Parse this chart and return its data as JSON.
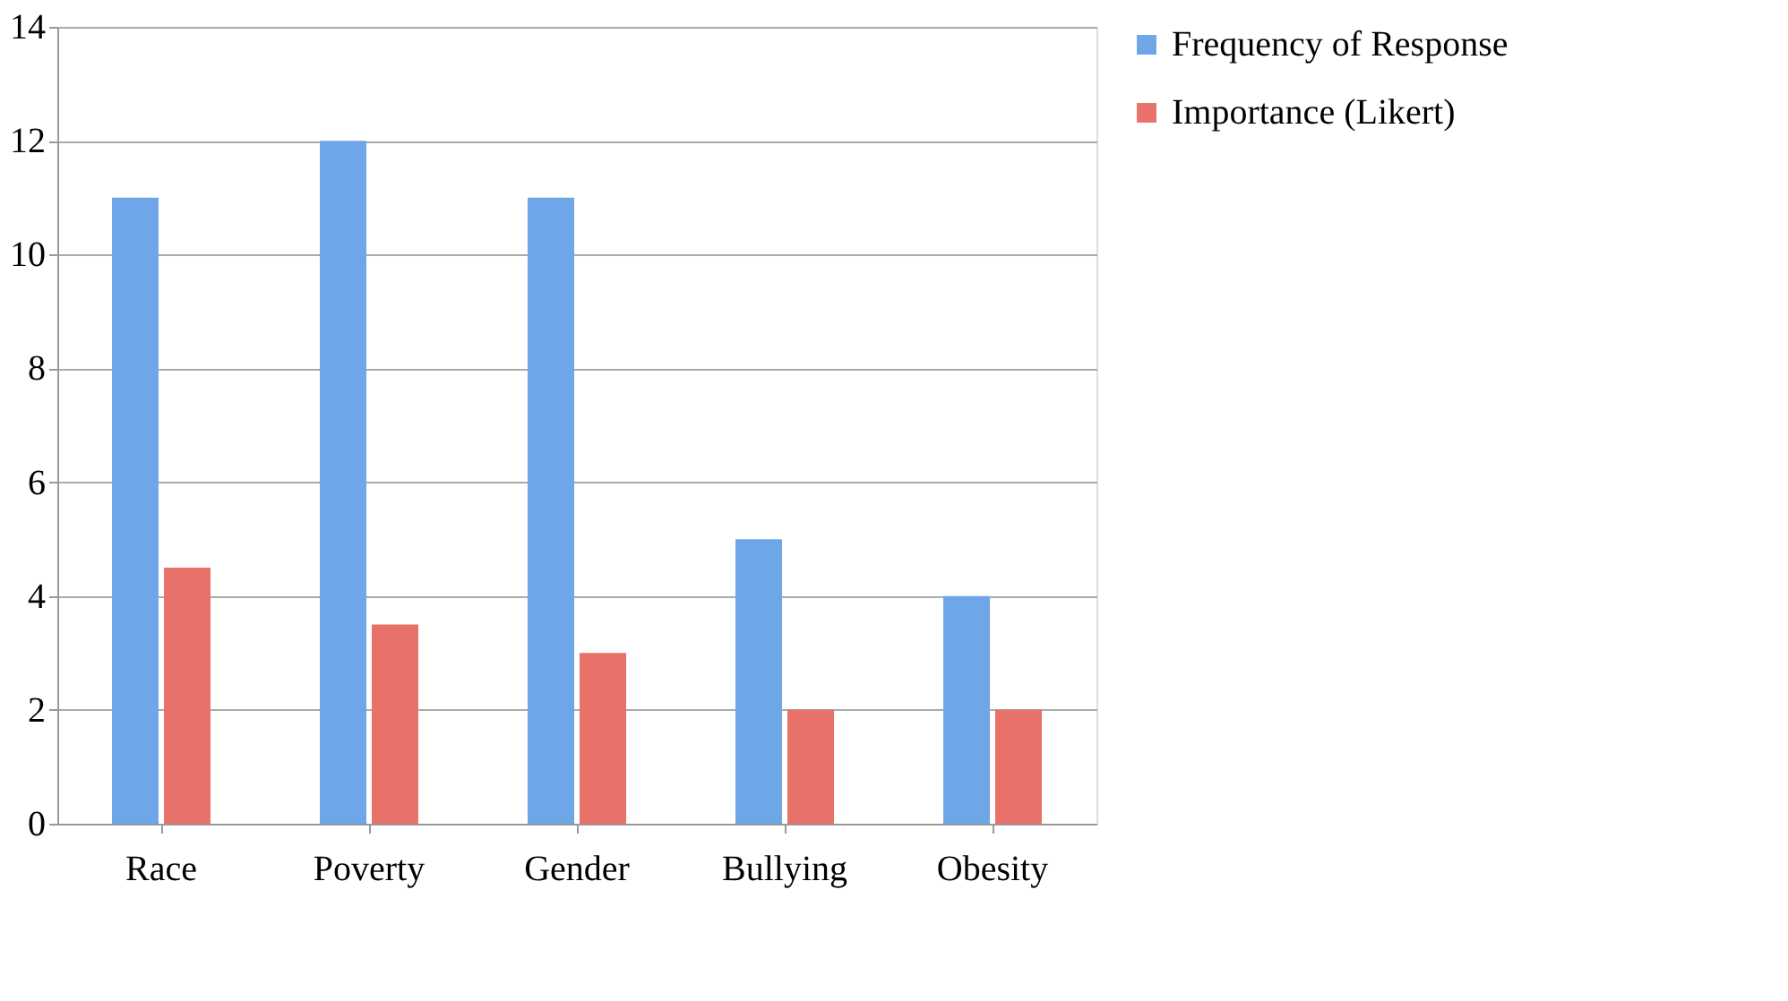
{
  "chart_data": {
    "type": "bar",
    "categories": [
      "Race",
      "Poverty",
      "Gender",
      "Bullying",
      "Obesity"
    ],
    "series": [
      {
        "name": "Frequency of Response",
        "color": "#6fa6e8",
        "values": [
          11,
          12,
          11,
          5,
          4
        ]
      },
      {
        "name": "Importance (Likert)",
        "color": "#e8726a",
        "values": [
          4.5,
          3.5,
          3,
          2,
          2
        ]
      }
    ],
    "ylim": [
      0,
      14
    ],
    "yticks": [
      0,
      2,
      4,
      6,
      8,
      10,
      12,
      14
    ],
    "grid": "y",
    "legend": "right"
  }
}
